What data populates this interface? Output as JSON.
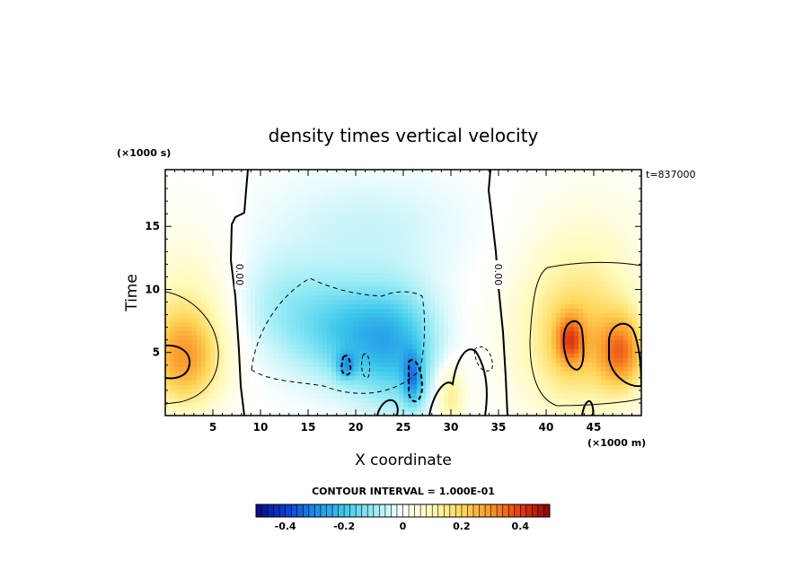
{
  "chart_data": {
    "type": "heatmap",
    "title": "density times vertical velocity",
    "xlabel": "X coordinate",
    "ylabel": "Time",
    "x_unit": "(×1000 m)",
    "y_unit": "(×1000 s)",
    "time_stamp": "t=837000",
    "xlim": [
      0,
      50
    ],
    "ylim": [
      0,
      19.5
    ],
    "x_ticks": [
      5,
      10,
      15,
      20,
      25,
      30,
      35,
      40,
      45
    ],
    "y_ticks": [
      5,
      10,
      15
    ],
    "contour_label": "0.00",
    "contour_interval_text": "CONTOUR INTERVAL = 1.000E-01",
    "colorbar": {
      "min": -0.5,
      "max": 0.5,
      "ticks": [
        "-0.4",
        "-0.2",
        "0",
        "0.2",
        "0.4"
      ],
      "tick_values": [
        -0.4,
        -0.2,
        0,
        0.2,
        0.4
      ]
    },
    "features": [
      {
        "x": 2,
        "y": 4.5,
        "sx": 4,
        "sy": 4,
        "value": 0.25
      },
      {
        "x": 2,
        "y": 9,
        "sx": 5,
        "sy": 6,
        "value": 0.08
      },
      {
        "x": 12,
        "y": 9,
        "sx": 5,
        "sy": 4,
        "value": -0.06
      },
      {
        "x": 18,
        "y": 7,
        "sx": 6,
        "sy": 4,
        "value": -0.12
      },
      {
        "x": 22,
        "y": 6,
        "sx": 5,
        "sy": 4,
        "value": -0.12
      },
      {
        "x": 25,
        "y": 5,
        "sx": 4,
        "sy": 5,
        "value": -0.12
      },
      {
        "x": 19,
        "y": 4,
        "sx": 1,
        "sy": 1,
        "value": -0.15
      },
      {
        "x": 26,
        "y": 3,
        "sx": 1,
        "sy": 2,
        "value": -0.2
      },
      {
        "x": 21,
        "y": 15,
        "sx": 10,
        "sy": 4,
        "value": -0.05
      },
      {
        "x": 30,
        "y": 1.5,
        "sx": 1.5,
        "sy": 2.5,
        "value": 0.15
      },
      {
        "x": 43,
        "y": 6,
        "sx": 6,
        "sy": 6,
        "value": 0.2
      },
      {
        "x": 42.5,
        "y": 6,
        "sx": 1.5,
        "sy": 2,
        "value": 0.2
      },
      {
        "x": 48,
        "y": 5,
        "sx": 2.5,
        "sy": 3,
        "value": 0.25
      },
      {
        "x": 45,
        "y": 13,
        "sx": 7,
        "sy": 6,
        "value": 0.05
      }
    ]
  }
}
